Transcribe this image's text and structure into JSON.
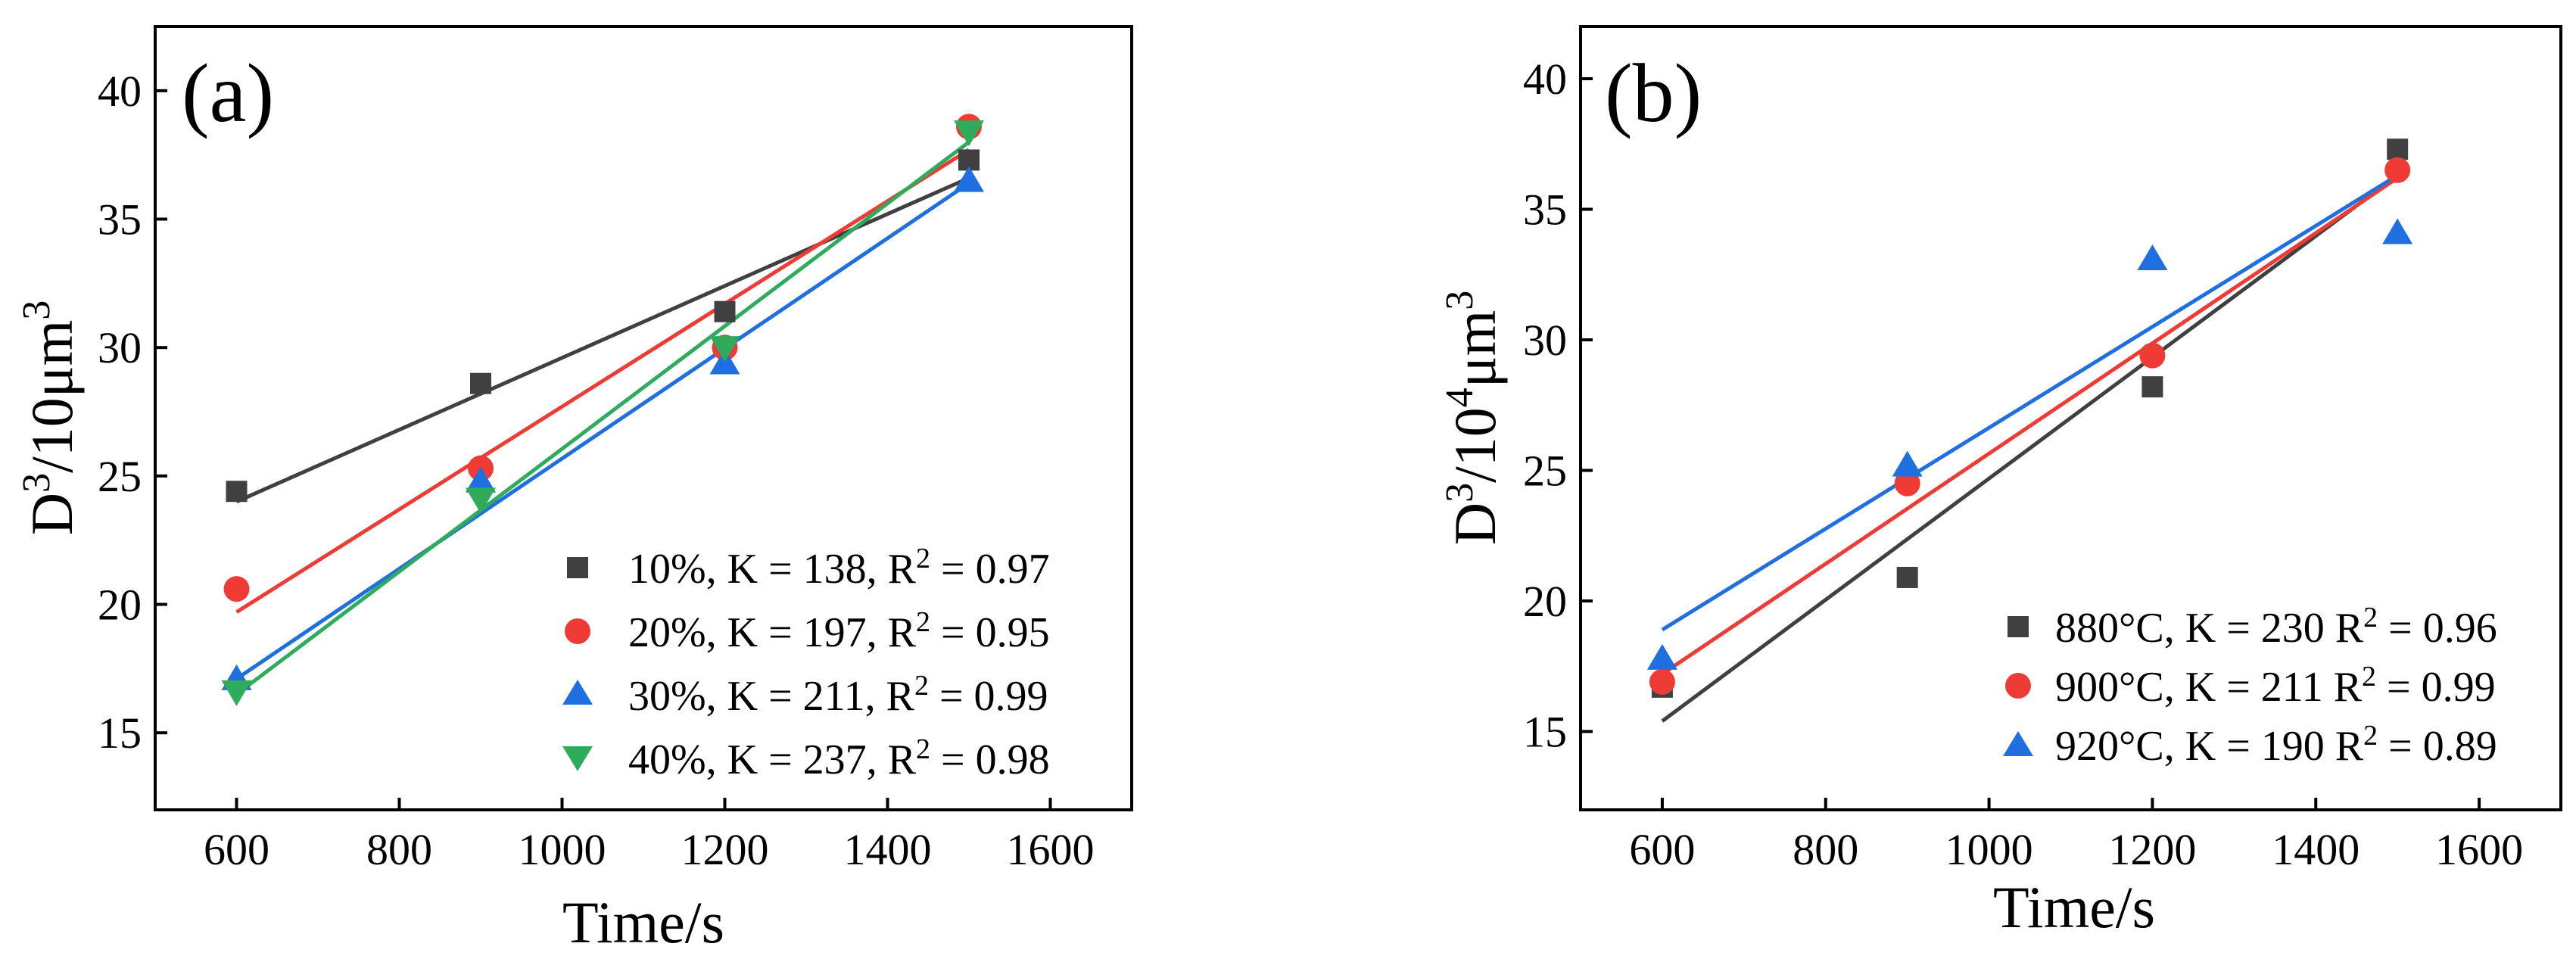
{
  "chart_data": [
    {
      "type": "scatter",
      "panel_label": "(a)",
      "xlabel": "Time/s",
      "ylabel_base": "D",
      "ylabel_sup1": "3",
      "ylabel_mid": "/10μm",
      "ylabel_sup2": "3",
      "xlim": [
        500,
        1700
      ],
      "ylim": [
        12,
        42.5
      ],
      "xticks": [
        "600",
        "800",
        "1000",
        "1200",
        "1400",
        "1600"
      ],
      "yticks": [
        "15",
        "20",
        "25",
        "30",
        "35",
        "40"
      ],
      "legend_position": "bottom-right",
      "series": [
        {
          "name": "10%",
          "legend_main": "10%, K = 138, R",
          "legend_sup": "2",
          "legend_tail": " = 0.97",
          "marker": "square",
          "color": "#404040",
          "x": [
            600,
            900,
            1200,
            1500
          ],
          "y": [
            24.4,
            28.6,
            31.4,
            37.3
          ],
          "fit": [
            [
              600,
              24.0
            ],
            [
              1500,
              36.6
            ]
          ]
        },
        {
          "name": "20%",
          "legend_main": "20%, K = 197, R",
          "legend_sup": "2",
          "legend_tail": " = 0.95",
          "marker": "circle",
          "color": "#ef3b36",
          "x": [
            600,
            900,
            1200,
            1500
          ],
          "y": [
            20.6,
            25.3,
            30.0,
            38.6
          ],
          "fit": [
            [
              600,
              19.7
            ],
            [
              1500,
              37.7
            ]
          ]
        },
        {
          "name": "30%",
          "legend_main": "30%, K = 211, R",
          "legend_sup": "2",
          "legend_tail": " = 0.99",
          "marker": "triangle-up",
          "color": "#1f6fe0",
          "x": [
            600,
            900,
            1200,
            1500
          ],
          "y": [
            17.1,
            24.8,
            29.4,
            36.5
          ],
          "fit": [
            [
              600,
              17.1
            ],
            [
              1500,
              36.4
            ]
          ]
        },
        {
          "name": "40%",
          "legend_main": "40%, K = 237, R",
          "legend_sup": "2",
          "legend_tail": " = 0.98",
          "marker": "triangle-down",
          "color": "#2eac5b",
          "x": [
            600,
            900,
            1200,
            1500
          ],
          "y": [
            16.6,
            24.1,
            30.0,
            38.4
          ],
          "fit": [
            [
              600,
              16.5
            ],
            [
              1500,
              38.0
            ]
          ]
        }
      ]
    },
    {
      "type": "scatter",
      "panel_label": "(b)",
      "xlabel": "Time/s",
      "ylabel_base": "D",
      "ylabel_sup1": "3",
      "ylabel_mid": "/10",
      "ylabel_sup2": "4",
      "ylabel_end": "μm",
      "ylabel_sup3": "3",
      "xlim": [
        500,
        1700
      ],
      "ylim": [
        12,
        42
      ],
      "xticks": [
        "600",
        "800",
        "1000",
        "1200",
        "1400",
        "1600"
      ],
      "yticks": [
        "15",
        "20",
        "25",
        "30",
        "35",
        "40"
      ],
      "legend_position": "bottom-right",
      "series": [
        {
          "name": "880°C",
          "legend_main": "880°C, K = 230 R",
          "legend_sup": "2",
          "legend_tail": " = 0.96",
          "marker": "square",
          "color": "#404040",
          "x": [
            600,
            900,
            1200,
            1500
          ],
          "y": [
            16.7,
            20.9,
            28.2,
            37.3
          ],
          "fit": [
            [
              600,
              15.4
            ],
            [
              1500,
              36.3
            ]
          ]
        },
        {
          "name": "900°C",
          "legend_main": "900°C, K = 211 R",
          "legend_sup": "2",
          "legend_tail": " = 0.99",
          "marker": "circle",
          "color": "#ef3b36",
          "x": [
            600,
            900,
            1200,
            1500
          ],
          "y": [
            16.9,
            24.5,
            29.4,
            36.5
          ],
          "fit": [
            [
              600,
              17.2
            ],
            [
              1500,
              36.2
            ]
          ]
        },
        {
          "name": "920°C",
          "legend_main": "920°C, K = 190 R",
          "legend_sup": "2",
          "legend_tail": " = 0.89",
          "marker": "triangle-up",
          "color": "#1f6fe0",
          "x": [
            600,
            900,
            1200,
            1500
          ],
          "y": [
            17.8,
            25.2,
            33.1,
            34.1
          ],
          "fit": [
            [
              600,
              18.9
            ],
            [
              1500,
              36.3
            ]
          ]
        }
      ]
    }
  ]
}
